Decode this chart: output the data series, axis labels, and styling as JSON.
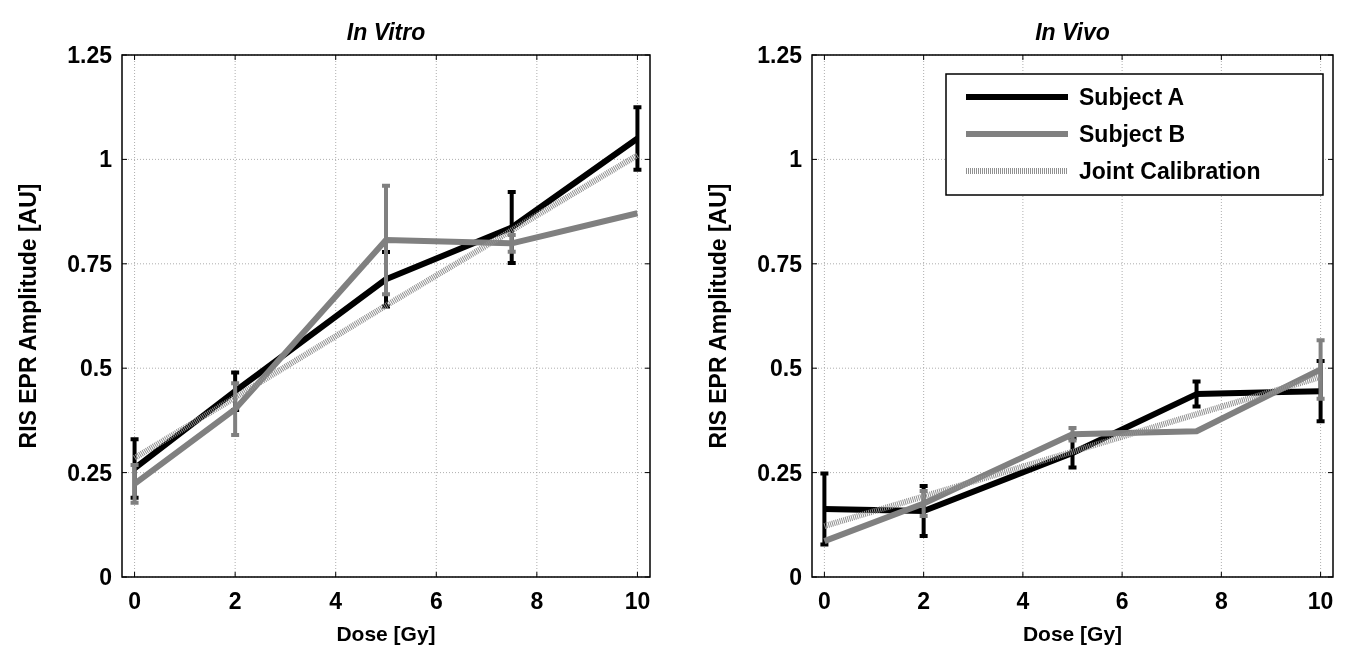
{
  "chart_data": [
    {
      "type": "line",
      "title": "In Vitro",
      "xlabel": "Dose [Gy]",
      "ylabel": "RIS EPR Amplitude [AU]",
      "x": [
        0,
        2,
        5,
        7.5,
        10
      ],
      "xlim": [
        -0.25,
        10.25
      ],
      "ylim": [
        0,
        1.25
      ],
      "xticks": [
        0,
        2,
        4,
        6,
        8,
        10
      ],
      "yticks": [
        0,
        0.25,
        0.5,
        0.75,
        1,
        1.25
      ],
      "grid": true,
      "legend": false,
      "series": [
        {
          "color": "#000000",
          "values": [
            0.26,
            0.445,
            0.713,
            0.837,
            1.05
          ],
          "errors": [
            0.07,
            0.045,
            0.065,
            0.085,
            0.075
          ]
        },
        {
          "color": "#808080",
          "values": [
            0.223,
            0.402,
            0.807,
            0.799,
            0.871
          ],
          "errors": [
            0.045,
            0.062,
            0.13,
            0.02,
            null
          ]
        },
        {
          "color": "#909090",
          "values": [
            0.285,
            0.43,
            0.65,
            0.83,
            1.01
          ],
          "line_style": "dotted"
        }
      ]
    },
    {
      "type": "line",
      "title": "In Vivo",
      "xlabel": "Dose [Gy]",
      "ylabel": "RIS EPR Amplitude [AU]",
      "x": [
        0,
        2,
        5,
        7.5,
        10
      ],
      "xlim": [
        -0.25,
        10.25
      ],
      "ylim": [
        0,
        1.25
      ],
      "xticks": [
        0,
        2,
        4,
        6,
        8,
        10
      ],
      "yticks": [
        0,
        0.25,
        0.5,
        0.75,
        1,
        1.25
      ],
      "grid": true,
      "legend": "top right",
      "series": [
        {
          "name": "Subject A",
          "color": "#000000",
          "values": [
            0.163,
            0.158,
            0.297,
            0.438,
            0.445
          ],
          "errors": [
            0.085,
            0.06,
            0.035,
            0.03,
            0.072
          ]
        },
        {
          "name": "Subject B",
          "color": "#808080",
          "values": [
            0.086,
            0.176,
            0.342,
            0.349,
            0.497
          ],
          "errors": [
            null,
            0.03,
            0.015,
            null,
            0.07
          ]
        },
        {
          "name": "Joint Calibration",
          "color": "#909090",
          "values": [
            0.122,
            0.193,
            0.3,
            0.39,
            0.479
          ],
          "line_style": "dotted"
        }
      ]
    }
  ]
}
